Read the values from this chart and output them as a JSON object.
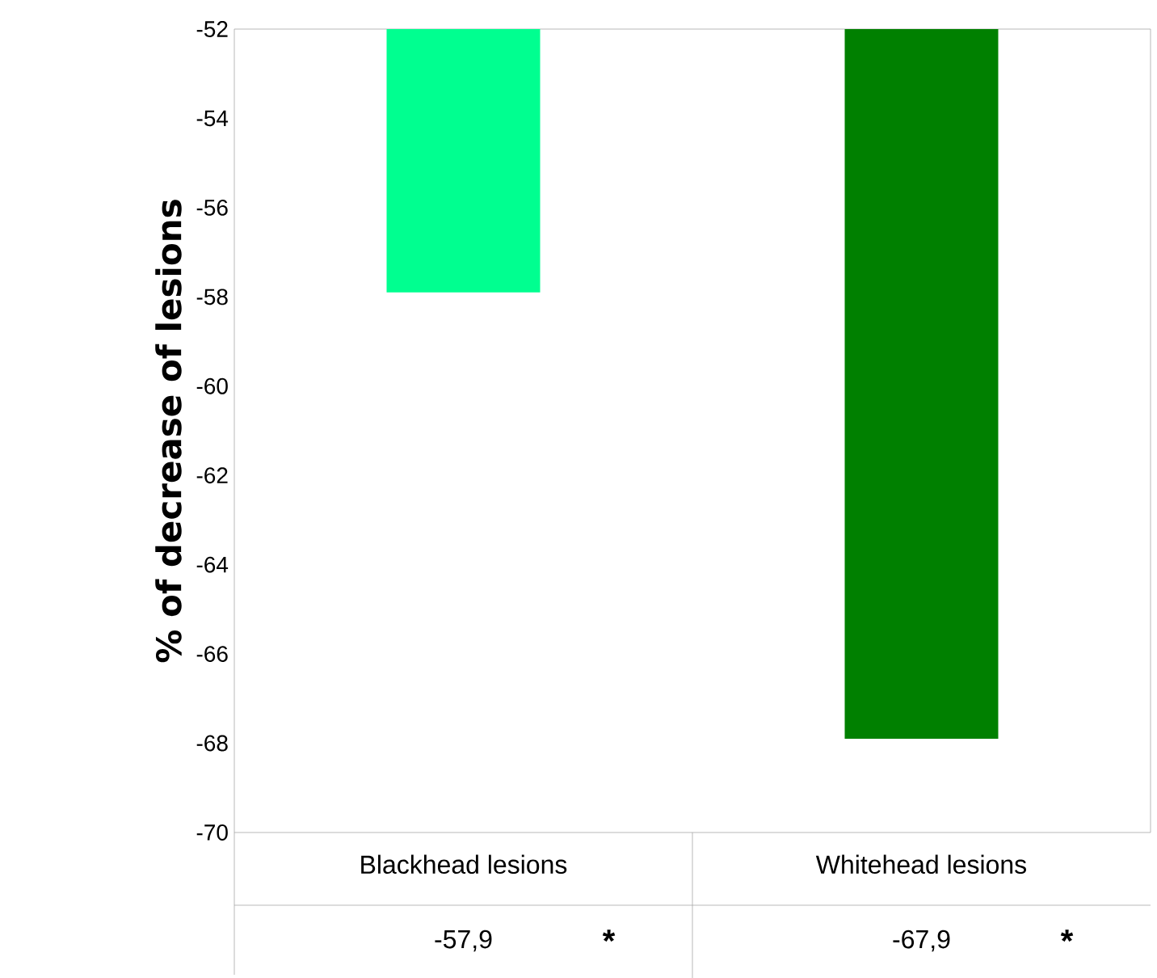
{
  "chart_data": {
    "type": "bar",
    "ylabel": "% of decrease of lesions",
    "categories": [
      "Blackhead lesions",
      "Whitehead lesions"
    ],
    "values": [
      -57.9,
      -67.9
    ],
    "colors": [
      "#00ff90",
      "#008000"
    ],
    "value_labels": [
      "-57,9",
      "-67,9"
    ],
    "annotations": [
      "*",
      "*"
    ],
    "ylim": [
      -70,
      -52
    ],
    "yticks": [
      -70,
      -68,
      -66,
      -64,
      -62,
      -60,
      -58,
      -56,
      -54,
      -52
    ],
    "grid": false
  }
}
